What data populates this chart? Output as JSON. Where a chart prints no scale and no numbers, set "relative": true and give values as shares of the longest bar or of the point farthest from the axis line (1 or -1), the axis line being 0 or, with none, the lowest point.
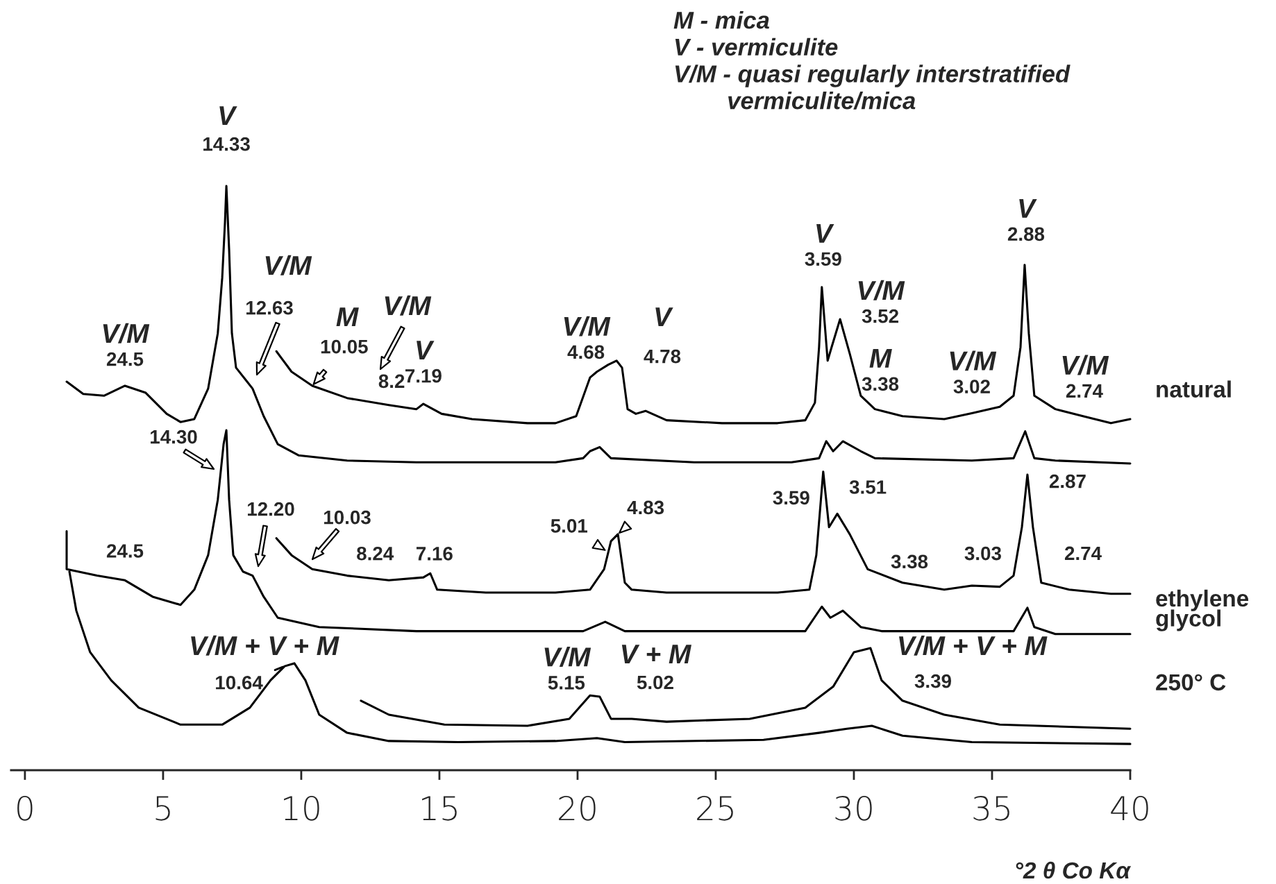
{
  "chart_data": {
    "type": "line",
    "relative": true,
    "xlabel": "°2 θ Co Kα",
    "xlim": [
      -0.5,
      40
    ],
    "xticks": [
      0,
      5,
      10,
      15,
      20,
      25,
      30,
      35,
      40
    ],
    "grid": false,
    "marker": "none",
    "line_style": "solid",
    "series": [
      {
        "color": "#000000",
        "x": [
          1.51,
          2.11,
          2.86,
          3.62,
          4.37,
          5.13,
          5.63,
          6.13,
          6.63,
          6.98,
          7.14,
          7.24,
          7.29,
          7.39,
          7.49,
          7.64,
          8.04,
          8.24,
          8.64,
          9.15,
          9.9,
          11.66,
          14.17,
          19.2,
          20.2,
          20.45,
          20.8,
          21.21,
          24.22,
          27.74,
          28.74,
          29.0,
          29.25,
          29.6,
          30.25,
          30.76,
          34.27,
          35.78,
          36.2,
          36.53,
          37.29,
          40.0
        ],
        "values": [
          0.665,
          0.644,
          0.641,
          0.658,
          0.646,
          0.61,
          0.596,
          0.601,
          0.653,
          0.748,
          0.843,
          0.938,
          1.0,
          0.891,
          0.748,
          0.689,
          0.665,
          0.653,
          0.606,
          0.558,
          0.539,
          0.53,
          0.527,
          0.527,
          0.534,
          0.546,
          0.553,
          0.534,
          0.527,
          0.527,
          0.534,
          0.563,
          0.546,
          0.563,
          0.546,
          0.534,
          0.53,
          0.534,
          0.58,
          0.534,
          0.53,
          0.525
        ]
      },
      {
        "name": "natural",
        "color": "#000000",
        "x": [
          9.1,
          9.65,
          10.4,
          11.66,
          13.17,
          14.17,
          14.42,
          15.08,
          16.18,
          18.19,
          19.2,
          19.95,
          20.45,
          20.7,
          21.11,
          21.41,
          21.61,
          21.81,
          22.11,
          22.46,
          23.22,
          25.23,
          27.24,
          28.24,
          28.59,
          28.74,
          28.84,
          29.05,
          29.2,
          29.5,
          29.85,
          30.25,
          30.76,
          31.76,
          33.27,
          34.27,
          35.28,
          35.78,
          36.03,
          36.18,
          36.33,
          36.53,
          37.29,
          38.29,
          39.3,
          40.0
        ],
        "values": [
          0.717,
          0.682,
          0.658,
          0.637,
          0.625,
          0.618,
          0.627,
          0.61,
          0.601,
          0.594,
          0.594,
          0.606,
          0.672,
          0.682,
          0.694,
          0.701,
          0.689,
          0.618,
          0.61,
          0.615,
          0.599,
          0.594,
          0.594,
          0.599,
          0.629,
          0.724,
          0.827,
          0.701,
          0.725,
          0.772,
          0.713,
          0.641,
          0.618,
          0.606,
          0.601,
          0.611,
          0.622,
          0.641,
          0.724,
          0.865,
          0.748,
          0.641,
          0.618,
          0.606,
          0.594,
          0.601
        ]
      },
      {
        "color": "#000000",
        "x": [
          1.51,
          1.51,
          2.61,
          3.62,
          4.62,
          5.63,
          6.13,
          6.63,
          6.98,
          7.19,
          7.29,
          7.39,
          7.54,
          7.89,
          8.24,
          8.64,
          9.15,
          10.65,
          14.17,
          20.2,
          21.0,
          21.71,
          28.24,
          28.84,
          29.15,
          29.6,
          30.25,
          31.0,
          35.78,
          36.28,
          36.53,
          37.29,
          40.0
        ],
        "values": [
          0.409,
          0.344,
          0.333,
          0.325,
          0.297,
          0.283,
          0.309,
          0.368,
          0.463,
          0.558,
          0.582,
          0.463,
          0.368,
          0.34,
          0.333,
          0.297,
          0.261,
          0.245,
          0.238,
          0.238,
          0.254,
          0.238,
          0.238,
          0.28,
          0.261,
          0.273,
          0.245,
          0.238,
          0.238,
          0.278,
          0.245,
          0.233,
          0.233
        ]
      },
      {
        "name": "ethylene\nglycol",
        "color": "#000000",
        "x": [
          9.1,
          9.65,
          10.4,
          11.66,
          13.17,
          14.42,
          14.67,
          14.92,
          16.68,
          19.2,
          20.45,
          20.96,
          21.21,
          21.46,
          21.71,
          21.96,
          23.22,
          27.24,
          28.39,
          28.64,
          28.89,
          29.1,
          29.4,
          29.85,
          30.5,
          31.76,
          33.27,
          34.27,
          35.28,
          35.78,
          36.08,
          36.28,
          36.48,
          36.78,
          37.79,
          39.3,
          40.0
        ],
        "values": [
          0.397,
          0.368,
          0.344,
          0.333,
          0.325,
          0.33,
          0.337,
          0.309,
          0.304,
          0.304,
          0.309,
          0.344,
          0.392,
          0.404,
          0.321,
          0.309,
          0.304,
          0.304,
          0.309,
          0.368,
          0.511,
          0.416,
          0.439,
          0.404,
          0.344,
          0.321,
          0.309,
          0.316,
          0.314,
          0.333,
          0.416,
          0.506,
          0.416,
          0.321,
          0.309,
          0.302,
          0.302
        ]
      },
      {
        "color": "#000000",
        "x": [
          1.61,
          1.86,
          2.36,
          3.12,
          4.12,
          5.63,
          7.14,
          8.14,
          8.89,
          9.4,
          9.75,
          10.15,
          10.65,
          11.66,
          13.17,
          15.68,
          19.2,
          20.7,
          21.71,
          26.73,
          28.74,
          29.75,
          30.65,
          31.76,
          34.27,
          40.0
        ],
        "values": [
          0.34,
          0.273,
          0.202,
          0.154,
          0.107,
          0.078,
          0.078,
          0.107,
          0.154,
          0.178,
          0.183,
          0.154,
          0.095,
          0.064,
          0.05,
          0.048,
          0.05,
          0.055,
          0.048,
          0.052,
          0.064,
          0.071,
          0.076,
          0.059,
          0.048,
          0.045
        ]
      },
      {
        "name": "250° C",
        "color": "#000000",
        "x": [
          12.16,
          13.17,
          15.18,
          18.19,
          19.7,
          20.45,
          20.8,
          21.21,
          21.96,
          23.22,
          26.23,
          28.24,
          29.25,
          30.0,
          30.6,
          31.0,
          31.76,
          33.27,
          35.28,
          40.0
        ],
        "values": [
          0.119,
          0.095,
          0.078,
          0.076,
          0.088,
          0.128,
          0.126,
          0.088,
          0.088,
          0.083,
          0.088,
          0.107,
          0.143,
          0.202,
          0.209,
          0.154,
          0.119,
          0.095,
          0.078,
          0.071
        ]
      }
    ],
    "annotations": [
      "M - mica\nV - vermiculite\nV/M - quasi regularly interstratified\n        vermiculite/mica",
      "V",
      {
        "text": "14.33",
        "x": 7.29,
        "y": 1.0
      },
      {
        "text": "V/M",
        "x": 3.62,
        "y": 0.658
      },
      {
        "text": "24.5",
        "x": 3.62,
        "y": 0.658
      },
      "V/M",
      "12.63",
      "M",
      {
        "text": "10.05",
        "x": 10.4,
        "y": 0.658
      },
      "V/M",
      {
        "text": "8.2",
        "x": 13.17,
        "y": 0.625
      },
      {
        "text": "V",
        "x": 14.42,
        "y": 0.627
      },
      {
        "text": "7.19",
        "x": 14.42,
        "y": 0.627
      },
      {
        "text": "V/M",
        "x": 21.41,
        "y": 0.701
      },
      {
        "text": "4.68",
        "x": 21.41,
        "y": 0.701
      },
      "V",
      "4.78",
      {
        "text": "V",
        "x": 28.84,
        "y": 0.827
      },
      {
        "text": "3.59",
        "x": 28.84,
        "y": 0.827
      },
      {
        "text": "V/M",
        "x": 29.5,
        "y": 0.772
      },
      {
        "text": "3.52",
        "x": 29.5,
        "y": 0.772
      },
      {
        "text": "M",
        "x": 31.76,
        "y": 0.606
      },
      {
        "text": "3.38",
        "x": 31.76,
        "y": 0.606
      },
      {
        "text": "V/M",
        "x": 34.27,
        "y": 0.611
      },
      {
        "text": "3.02",
        "x": 34.27,
        "y": 0.611
      },
      {
        "text": "V",
        "x": 36.18,
        "y": 0.865
      },
      {
        "text": "2.88",
        "x": 36.18,
        "y": 0.865
      },
      {
        "text": "V/M",
        "x": 38.29,
        "y": 0.606
      },
      {
        "text": "2.74",
        "x": 38.29,
        "y": 0.606
      },
      "14.30",
      "12.20",
      "10.03",
      {
        "text": "24.5",
        "x": 3.62,
        "y": 0.325
      },
      {
        "text": "8.24",
        "x": 12.67,
        "y": 0.33
      },
      {
        "text": "7.16",
        "x": 14.67,
        "y": 0.337
      },
      {
        "text": "5.01",
        "x": 21.05,
        "y": 0.375
      },
      {
        "text": "4.83",
        "x": 21.46,
        "y": 0.404
      },
      {
        "text": "3.59",
        "x": 28.89,
        "y": 0.511
      },
      {
        "text": "3.51",
        "x": 29.4,
        "y": 0.439
      },
      {
        "text": "3.38",
        "x": 31.76,
        "y": 0.321
      },
      {
        "text": "3.03",
        "x": 34.27,
        "y": 0.316
      },
      {
        "text": "2.87",
        "x": 36.28,
        "y": 0.506
      },
      {
        "text": "2.74",
        "x": 37.79,
        "y": 0.309
      },
      {
        "text": "V/M + V + M",
        "x": 9.75,
        "y": 0.183
      },
      {
        "text": "10.64",
        "x": 9.4,
        "y": 0.178
      },
      {
        "text": "V/M",
        "x": 20.45,
        "y": 0.128
      },
      {
        "text": "5.15",
        "x": 20.45,
        "y": 0.128
      },
      {
        "text": "V + M",
        "x": 21.96,
        "y": 0.088
      },
      {
        "text": "5.02",
        "x": 21.96,
        "y": 0.088
      },
      {
        "text": "V/M + V + M",
        "x": 30.6,
        "y": 0.209
      },
      "3.39"
    ]
  }
}
